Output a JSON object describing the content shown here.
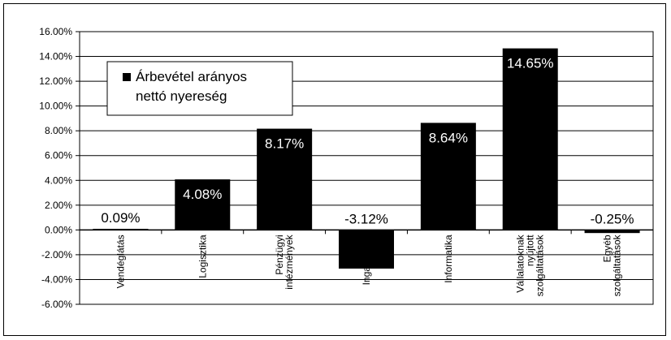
{
  "chart_data": {
    "type": "bar",
    "categories": [
      "Vendéglátás",
      "Logisztika",
      "Pénzügyi intézmények",
      "Ingatlanügy",
      "Informatika",
      "Vállalatoknak nyújtott szolgáltatások",
      "Egyéb szolgáltatások"
    ],
    "category_lines": [
      [
        "Vendéglátás"
      ],
      [
        "Logisztika"
      ],
      [
        "Pénzügyi",
        "intézmények"
      ],
      [
        "Ingatlanügy"
      ],
      [
        "Informatika"
      ],
      [
        "Vállalatoknak",
        "nyújtott",
        "szolgáltatások"
      ],
      [
        "Egyéb",
        "szolgáltatások"
      ]
    ],
    "series": [
      {
        "name": "Árbevétel arányos nettó nyereség",
        "name_lines": [
          "Árbevétel arányos",
          "nettó nyereség"
        ],
        "values": [
          0.09,
          4.08,
          8.17,
          -3.12,
          8.64,
          14.65,
          -0.25
        ],
        "value_labels": [
          "0.09%",
          "4.08%",
          "8.17%",
          "-3.12%",
          "8.64%",
          "14.65%",
          "-0.25%"
        ]
      }
    ],
    "yticks": [
      "16.00%",
      "14.00%",
      "12.00%",
      "10.00%",
      "8.00%",
      "6.00%",
      "4.00%",
      "2.00%",
      "0.00%",
      "-2.00%",
      "-4.00%",
      "-6.00%"
    ],
    "ylim": [
      -6,
      16
    ],
    "ytick_step": 2,
    "grid": true,
    "legend_position": "top-left",
    "colors": {
      "bar": "#000000",
      "grid": "#000000",
      "label_inside": "#ffffff",
      "label_outside": "#000000"
    }
  }
}
